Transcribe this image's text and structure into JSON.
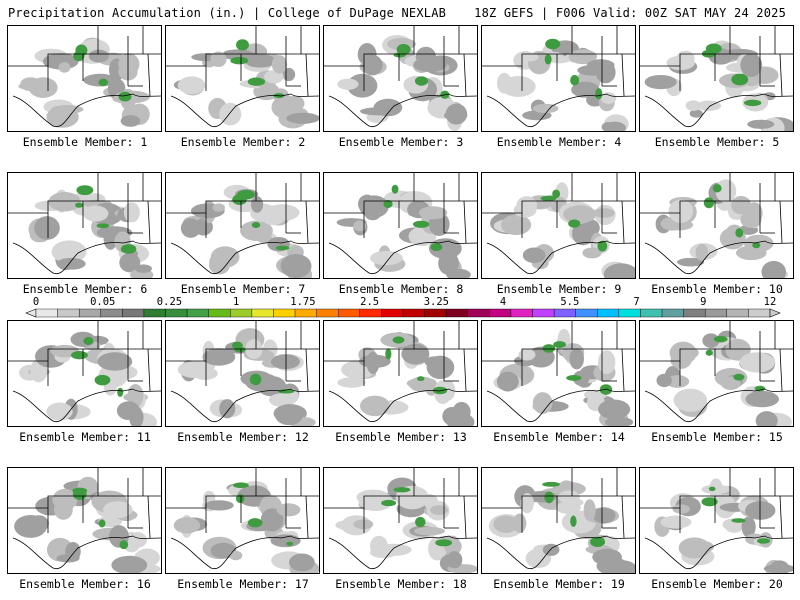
{
  "header": {
    "title": "Precipitation Accumulation (in.) | College of DuPage NEXLAB",
    "run_info": "18Z GEFS | F006 Valid: 00Z SAT MAY 24 2025"
  },
  "panels": [
    {
      "label": "Ensemble Member: 1"
    },
    {
      "label": "Ensemble Member: 2"
    },
    {
      "label": "Ensemble Member: 3"
    },
    {
      "label": "Ensemble Member: 4"
    },
    {
      "label": "Ensemble Member: 5"
    },
    {
      "label": "Ensemble Member: 6"
    },
    {
      "label": "Ensemble Member: 7"
    },
    {
      "label": "Ensemble Member: 8"
    },
    {
      "label": "Ensemble Member: 9"
    },
    {
      "label": "Ensemble Member: 10"
    },
    {
      "label": "Ensemble Member: 11"
    },
    {
      "label": "Ensemble Member: 12"
    },
    {
      "label": "Ensemble Member: 13"
    },
    {
      "label": "Ensemble Member: 14"
    },
    {
      "label": "Ensemble Member: 15"
    },
    {
      "label": "Ensemble Member: 16"
    },
    {
      "label": "Ensemble Member: 17"
    },
    {
      "label": "Ensemble Member: 18"
    },
    {
      "label": "Ensemble Member: 19"
    },
    {
      "label": "Ensemble Member: 20"
    }
  ],
  "colorbar": {
    "tick_labels": [
      "0",
      "0.05",
      "0.25",
      "1",
      "1.75",
      "2.5",
      "3.25",
      "4",
      "5.5",
      "7",
      "9",
      "12"
    ],
    "colors": [
      "#e8e8e8",
      "#c8c8c8",
      "#a8a8a8",
      "#8c8c8c",
      "#787878",
      "#2e7d32",
      "#388e3c",
      "#43a047",
      "#66bb1a",
      "#9ccc2a",
      "#e6e62e",
      "#ffd000",
      "#ffaa00",
      "#ff8000",
      "#ff5a00",
      "#ff2a00",
      "#e00000",
      "#c00000",
      "#a00000",
      "#800020",
      "#a0005a",
      "#c00080",
      "#e020c0",
      "#c040ff",
      "#8060ff",
      "#4090ff",
      "#00c0ff",
      "#00e0e0",
      "#40c0b0",
      "#60a0a0",
      "#808080",
      "#9a9a9a",
      "#b4b4b4",
      "#cccccc"
    ]
  }
}
